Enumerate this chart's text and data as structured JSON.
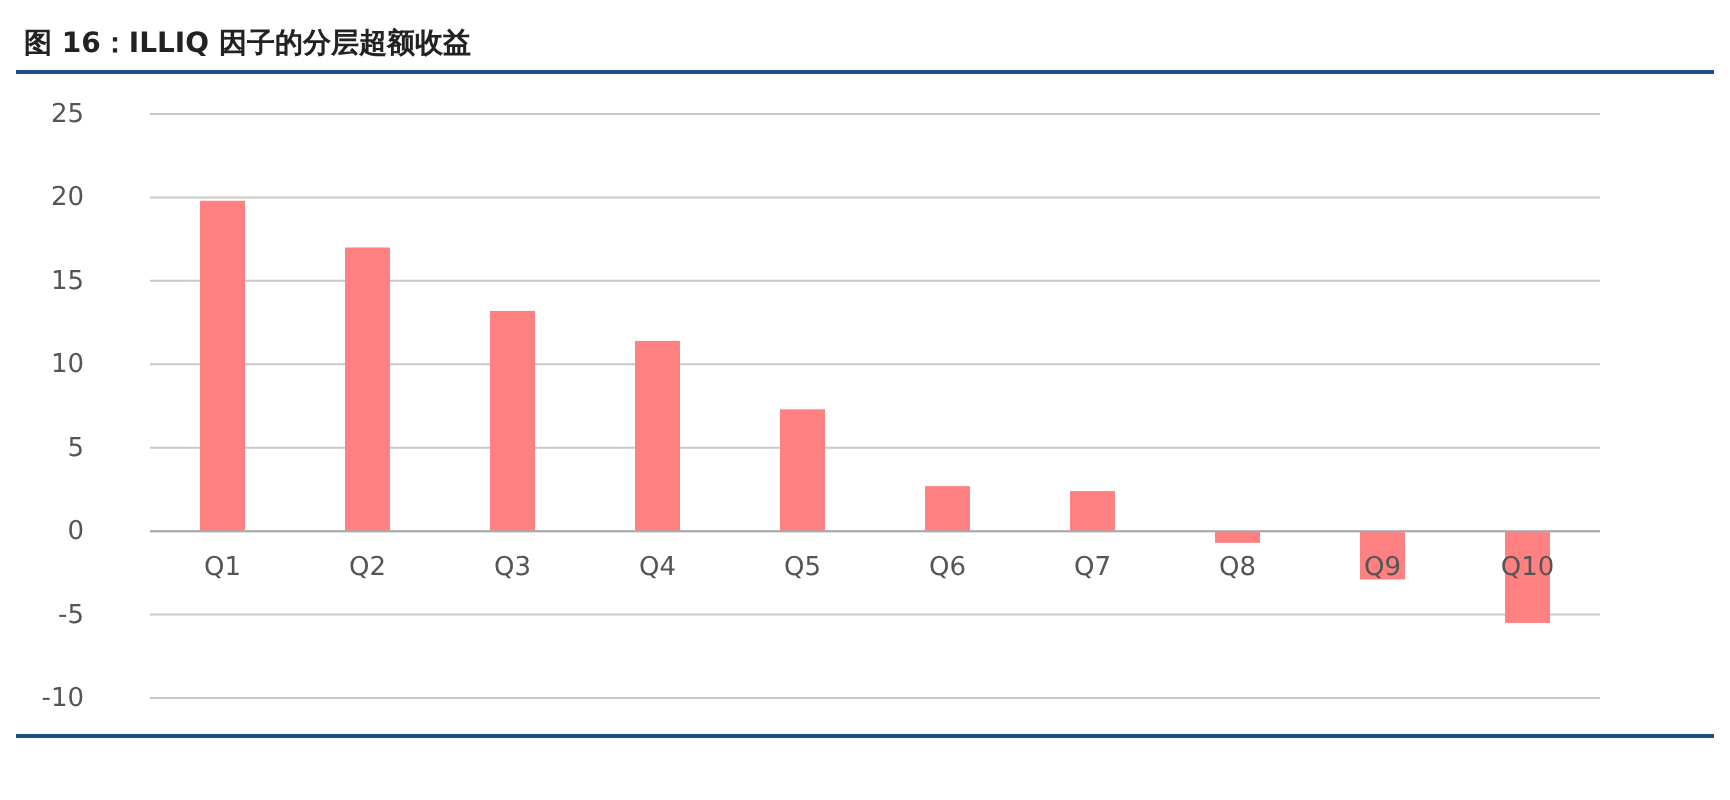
{
  "chart_data": {
    "type": "bar",
    "title": "图 16：ILLIQ 因子的分层超额收益",
    "categories": [
      "Q1",
      "Q2",
      "Q3",
      "Q4",
      "Q5",
      "Q6",
      "Q7",
      "Q8",
      "Q9",
      "Q10"
    ],
    "values": [
      19.8,
      17.0,
      13.2,
      11.4,
      7.3,
      2.7,
      2.4,
      -0.7,
      -2.9,
      -5.5
    ],
    "color": "#ff8080",
    "ylim": [
      -10,
      25
    ],
    "yticks": [
      -10,
      -5,
      0,
      5,
      10,
      15,
      20,
      25
    ],
    "grid": "y"
  }
}
